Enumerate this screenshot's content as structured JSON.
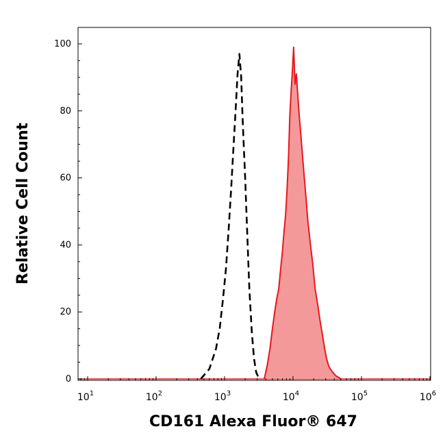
{
  "chart_data": {
    "type": "area",
    "xlabel": "CD161 Alexa Fluor® 647",
    "ylabel": "Relative Cell Count",
    "x_scale": "log",
    "xlim": [
      5,
      1200000
    ],
    "ylim": [
      0,
      100
    ],
    "x_ticks": [
      {
        "base": "10",
        "exp": "1",
        "value": 10
      },
      {
        "base": "10",
        "exp": "2",
        "value": 100
      },
      {
        "base": "10",
        "exp": "3",
        "value": 1000
      },
      {
        "base": "10",
        "exp": "4",
        "value": 10000
      },
      {
        "base": "10",
        "exp": "5",
        "value": 100000
      },
      {
        "base": "10",
        "exp": "6",
        "value": 1000000
      }
    ],
    "y_ticks": [
      {
        "label": "0",
        "value": 0
      },
      {
        "label": "20",
        "value": 20
      },
      {
        "label": "40",
        "value": 40
      },
      {
        "label": "60",
        "value": 60
      },
      {
        "label": "80",
        "value": 80
      },
      {
        "label": "100",
        "value": 100
      }
    ],
    "grid": false,
    "colors": {
      "stained": "#e8161b",
      "stained_fill": "#f4999a",
      "control": "#000000"
    },
    "series": [
      {
        "style": "dashed-line",
        "x": [
          450,
          600,
          750,
          850,
          950,
          1050,
          1150,
          1250,
          1350,
          1450,
          1550,
          1650,
          1750,
          1850,
          2000,
          2150,
          2300,
          2500,
          2700,
          2900,
          3200
        ],
        "y": [
          0,
          3,
          9,
          15,
          24,
          33,
          45,
          57,
          69,
          80,
          91,
          97,
          90,
          76,
          60,
          43,
          27,
          14,
          6,
          2,
          0
        ]
      },
      {
        "style": "filled",
        "x": [
          3800,
          4200,
          4600,
          5000,
          5400,
          5800,
          6200,
          6600,
          7000,
          7400,
          7800,
          8200,
          8600,
          9000,
          9400,
          9800,
          10200,
          10700,
          11200,
          11800,
          12400,
          13000,
          13700,
          14500,
          15500,
          16500,
          18000,
          19500,
          21000,
          23000,
          25000,
          27000,
          29000,
          31000,
          33000,
          35000,
          38000,
          42000,
          46000,
          50000
        ],
        "y": [
          0,
          4,
          9,
          15,
          20,
          24,
          27,
          33,
          38,
          44,
          49,
          57,
          66,
          79,
          86,
          92,
          99,
          88,
          91,
          84,
          78,
          73,
          67,
          61,
          54,
          47,
          40,
          34,
          27,
          22,
          17,
          13,
          9,
          6,
          4,
          3,
          2,
          1,
          0.5,
          0
        ]
      }
    ]
  }
}
